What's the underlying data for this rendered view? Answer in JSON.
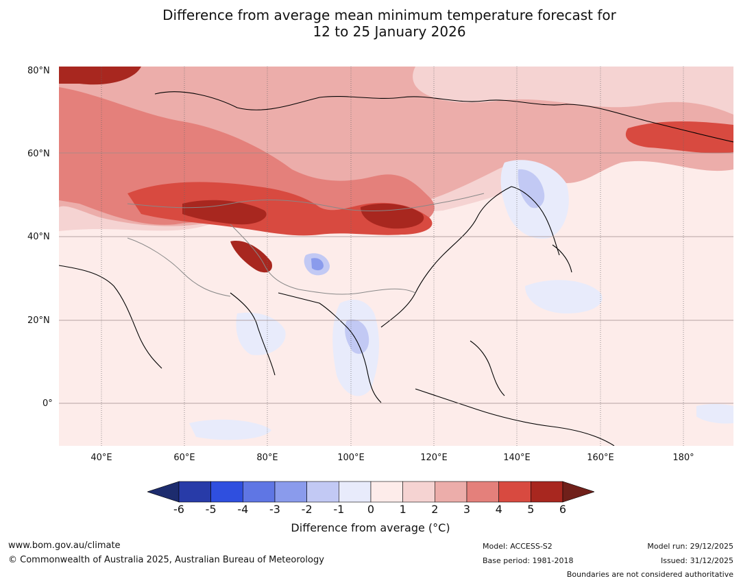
{
  "title": {
    "line1": "Difference from average mean minimum temperature forecast for",
    "line2": "12 to 25 January 2026"
  },
  "map": {
    "lat_labels": [
      "80°N",
      "60°N",
      "40°N",
      "20°N",
      "0°"
    ],
    "lon_labels": [
      "40°E",
      "60°E",
      "80°E",
      "100°E",
      "120°E",
      "140°E",
      "160°E",
      "180°"
    ],
    "background_color": "#fdecea"
  },
  "colorbar": {
    "ticks": [
      "-6",
      "-5",
      "-4",
      "-3",
      "-2",
      "-1",
      "0",
      "1",
      "2",
      "3",
      "4",
      "5",
      "6"
    ],
    "colors": [
      "#283ba8",
      "#2f4fdf",
      "#5f76e4",
      "#8a9bec",
      "#c2c9f4",
      "#e8ebfb",
      "#fdecea",
      "#f5d3d2",
      "#ecadaa",
      "#e4807b",
      "#d84a40",
      "#a8271f"
    ],
    "under_color": "#1d2c6e",
    "over_color": "#70201a",
    "label": "Difference from average (°C)"
  },
  "footer": {
    "website": "www.bom.gov.au/climate",
    "copyright": "© Commonwealth of Australia 2025, Australian Bureau of Meteorology",
    "model": "Model: ACCESS-S2",
    "base_period": "Base period: 1981-2018",
    "model_run": "Model run: 29/12/2025",
    "issued": "Issued: 31/12/2025",
    "disclaimer": "Boundaries are not considered authoritative"
  }
}
